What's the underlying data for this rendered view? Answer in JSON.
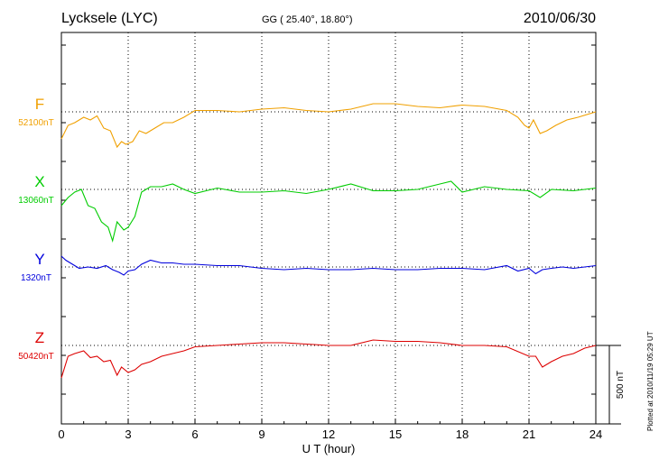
{
  "header": {
    "station": "Lycksele (LYC)",
    "coords": "GG ( 25.40°,  18.80°)",
    "date": "2010/06/30"
  },
  "plotted_note": "Plotted at 2010/11/19 05:29 UT",
  "scale_label": "500 nT",
  "chart_data": {
    "type": "line",
    "title": "Lycksele (LYC)",
    "xlabel": "U T (hour)",
    "ylabel": "",
    "xlim": [
      0,
      24
    ],
    "xticks": [
      0,
      3,
      6,
      9,
      12,
      15,
      18,
      21,
      24
    ],
    "grid": true,
    "scale_bar_nT": 500,
    "series": [
      {
        "name": "F",
        "baseline": "52100nT",
        "color": "#f0a000",
        "x": [
          0,
          0.3,
          0.6,
          1,
          1.3,
          1.6,
          1.9,
          2.2,
          2.5,
          2.7,
          2.9,
          3.2,
          3.5,
          3.8,
          4.2,
          4.6,
          5,
          5.5,
          6,
          7,
          8,
          9,
          10,
          11,
          12,
          13,
          14,
          15,
          16,
          17,
          18,
          19,
          20,
          20.5,
          20.8,
          21,
          21.2,
          21.5,
          21.8,
          22.2,
          22.7,
          23.2,
          24
        ],
        "y": [
          -100,
          -50,
          -40,
          -20,
          -30,
          -15,
          -60,
          -70,
          -130,
          -110,
          -120,
          -110,
          -70,
          -80,
          -60,
          -40,
          -40,
          -20,
          5,
          5,
          0,
          10,
          15,
          5,
          0,
          10,
          30,
          30,
          20,
          15,
          25,
          20,
          5,
          -20,
          -50,
          -60,
          -30,
          -80,
          -70,
          -50,
          -30,
          -20,
          0
        ]
      },
      {
        "name": "X",
        "baseline": "13060nT",
        "color": "#00cc00",
        "x": [
          0,
          0.3,
          0.6,
          0.9,
          1.2,
          1.5,
          1.8,
          2.1,
          2.3,
          2.5,
          2.8,
          3.0,
          3.3,
          3.6,
          4,
          4.5,
          5,
          5.5,
          6,
          7,
          8,
          9,
          10,
          11,
          12,
          13,
          14,
          15,
          16,
          17,
          17.5,
          18,
          19,
          20,
          21,
          21.5,
          22,
          23,
          24
        ],
        "y": [
          -60,
          -30,
          -10,
          0,
          -60,
          -70,
          -120,
          -140,
          -190,
          -120,
          -150,
          -140,
          -100,
          -10,
          10,
          10,
          20,
          0,
          -15,
          5,
          -10,
          -10,
          -5,
          -15,
          0,
          20,
          -5,
          -5,
          0,
          20,
          30,
          -10,
          10,
          0,
          -5,
          -30,
          0,
          -5,
          5
        ]
      },
      {
        "name": "Y",
        "baseline": "1320nT",
        "color": "#0000dd",
        "x": [
          0,
          0.2,
          0.5,
          0.8,
          1.2,
          1.6,
          2,
          2.3,
          2.6,
          2.8,
          3.0,
          3.3,
          3.6,
          4,
          4.5,
          5,
          5.5,
          6,
          7,
          8,
          9,
          10,
          11,
          12,
          13,
          14,
          15,
          16,
          17,
          18,
          19,
          20,
          20.5,
          21,
          21.3,
          21.6,
          22,
          22.5,
          23,
          24
        ],
        "y": [
          40,
          25,
          10,
          -5,
          0,
          -5,
          5,
          -10,
          -20,
          -30,
          -15,
          -10,
          10,
          25,
          15,
          15,
          10,
          10,
          5,
          5,
          -5,
          -10,
          -5,
          -10,
          -10,
          -5,
          -10,
          -10,
          -5,
          -5,
          -10,
          5,
          -15,
          -5,
          -25,
          -10,
          -5,
          0,
          -5,
          5
        ]
      },
      {
        "name": "Z",
        "baseline": "50420nT",
        "color": "#dd0000",
        "x": [
          0,
          0.3,
          0.6,
          1.0,
          1.3,
          1.6,
          1.9,
          2.2,
          2.5,
          2.7,
          3.0,
          3.3,
          3.6,
          4,
          4.5,
          5,
          5.5,
          6,
          7,
          8,
          9,
          10,
          11,
          12,
          13,
          14,
          15,
          16,
          17,
          18,
          19,
          20,
          21,
          21.3,
          21.6,
          22,
          22.5,
          23,
          23.5,
          24
        ],
        "y": [
          -120,
          -40,
          -30,
          -20,
          -45,
          -40,
          -60,
          -55,
          -110,
          -80,
          -100,
          -90,
          -70,
          -60,
          -40,
          -30,
          -20,
          -5,
          0,
          5,
          10,
          10,
          5,
          0,
          0,
          20,
          15,
          15,
          10,
          0,
          0,
          -5,
          -40,
          -40,
          -80,
          -60,
          -40,
          -30,
          -10,
          0
        ]
      }
    ]
  }
}
